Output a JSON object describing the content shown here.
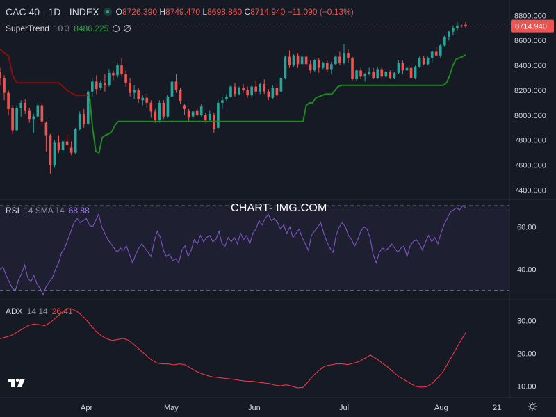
{
  "header": {
    "symbol": "CAC 40 · 1D · INDEX",
    "o_label": "O",
    "o_value": "8726.390",
    "h_label": "H",
    "h_value": "8749.470",
    "l_label": "L",
    "l_value": "8698.860",
    "c_label": "C",
    "c_value": "8714.940",
    "change": "−11.090 (−0.13%)"
  },
  "indicators": {
    "supertrend": {
      "name": "SuperTrend",
      "params": "10 3",
      "value": "8486.225"
    },
    "rsi": {
      "name": "RSI",
      "params": "14 SMA 14",
      "value": "68.88"
    },
    "adx": {
      "name": "ADX",
      "params": "14 14",
      "value": "26.41"
    }
  },
  "watermark": "CHART- IMG.COM",
  "price_badge": "8714.940",
  "colors": {
    "background": "#161a25",
    "up": "#26a69a",
    "down": "#ef5350",
    "supertrend_up": "#1e8a1e",
    "supertrend_down": "#8b0d0d",
    "rsi_line": "#7e57c2",
    "adx_line": "#f23645"
  },
  "chart_data": [
    {
      "type": "candlestick",
      "title": "CAC 40 · 1D · INDEX",
      "y_ticks": [
        "8800.000",
        "8600.000",
        "8400.000",
        "8200.000",
        "8000.000",
        "7800.000",
        "7600.000",
        "7400.000"
      ],
      "ylim": [
        7330,
        8880
      ],
      "x_ticks": [
        "Apr",
        "May",
        "Jun",
        "Jul",
        "Aug",
        "21"
      ],
      "ohlc": [
        [
          8350,
          8380,
          8240,
          8300
        ],
        [
          8300,
          8320,
          8120,
          8180
        ],
        [
          8180,
          8200,
          8000,
          8050
        ],
        [
          8060,
          8080,
          7850,
          7880
        ],
        [
          7880,
          8080,
          7870,
          8060
        ],
        [
          8060,
          8120,
          7990,
          8100
        ],
        [
          8100,
          8130,
          8010,
          8040
        ],
        [
          8040,
          8060,
          7940,
          7970
        ],
        [
          7970,
          8010,
          7860,
          7990
        ],
        [
          7990,
          8100,
          7980,
          8080
        ],
        [
          8080,
          8100,
          7920,
          7950
        ],
        [
          7940,
          7950,
          7710,
          7840
        ],
        [
          7840,
          7850,
          7530,
          7600
        ],
        [
          7600,
          7800,
          7580,
          7780
        ],
        [
          7780,
          7840,
          7700,
          7720
        ],
        [
          7720,
          7800,
          7690,
          7790
        ],
        [
          7790,
          7850,
          7740,
          7760
        ],
        [
          7740,
          7790,
          7680,
          7700
        ],
        [
          7700,
          7900,
          7690,
          7890
        ],
        [
          7890,
          8030,
          7880,
          8010
        ],
        [
          8010,
          8050,
          7900,
          7930
        ],
        [
          7930,
          8200,
          7920,
          8190
        ],
        [
          8190,
          8300,
          8150,
          8270
        ],
        [
          8270,
          8320,
          8170,
          8210
        ],
        [
          8220,
          8280,
          8200,
          8260
        ],
        [
          8260,
          8330,
          8190,
          8240
        ],
        [
          8240,
          8370,
          8230,
          8340
        ],
        [
          8340,
          8360,
          8280,
          8320
        ],
        [
          8320,
          8420,
          8300,
          8400
        ],
        [
          8400,
          8460,
          8310,
          8330
        ],
        [
          8330,
          8360,
          8230,
          8260
        ],
        [
          8260,
          8300,
          8150,
          8180
        ],
        [
          8180,
          8240,
          8130,
          8200
        ],
        [
          8200,
          8220,
          8100,
          8130
        ],
        [
          8120,
          8160,
          8080,
          8140
        ],
        [
          8140,
          8170,
          8060,
          8100
        ],
        [
          8100,
          8120,
          7980,
          8030
        ],
        [
          8030,
          8050,
          7940,
          7960
        ],
        [
          7960,
          8120,
          7940,
          8100
        ],
        [
          8100,
          8120,
          7970,
          7990
        ],
        [
          7990,
          8160,
          7980,
          8150
        ],
        [
          8150,
          8280,
          8140,
          8270
        ],
        [
          8270,
          8330,
          8180,
          8200
        ],
        [
          8200,
          8220,
          8090,
          8110
        ],
        [
          8080,
          8090,
          8000,
          8050
        ],
        [
          8040,
          8050,
          7950,
          7980
        ],
        [
          7990,
          8040,
          7970,
          8030
        ],
        [
          8040,
          8060,
          7980,
          8000
        ],
        [
          8000,
          8090,
          7990,
          8070
        ],
        [
          8000,
          8020,
          7940,
          7960
        ],
        [
          7960,
          8040,
          7950,
          8010
        ],
        [
          8000,
          8020,
          7860,
          7890
        ],
        [
          7900,
          8120,
          7890,
          8100
        ],
        [
          8100,
          8150,
          8050,
          8120
        ],
        [
          8130,
          8170,
          8110,
          8150
        ],
        [
          8150,
          8240,
          8140,
          8230
        ],
        [
          8230,
          8260,
          8150,
          8170
        ],
        [
          8170,
          8230,
          8160,
          8220
        ],
        [
          8220,
          8250,
          8180,
          8200
        ],
        [
          8200,
          8230,
          8140,
          8160
        ],
        [
          8160,
          8240,
          8140,
          8230
        ],
        [
          8230,
          8280,
          8170,
          8190
        ],
        [
          8190,
          8260,
          8170,
          8250
        ],
        [
          8250,
          8290,
          8170,
          8190
        ],
        [
          8190,
          8210,
          8120,
          8150
        ],
        [
          8140,
          8240,
          8130,
          8220
        ],
        [
          8220,
          8240,
          8140,
          8160
        ],
        [
          8190,
          8310,
          8180,
          8300
        ],
        [
          8300,
          8480,
          8290,
          8470
        ],
        [
          8470,
          8520,
          8380,
          8400
        ],
        [
          8400,
          8490,
          8390,
          8480
        ],
        [
          8480,
          8500,
          8380,
          8410
        ],
        [
          8410,
          8480,
          8400,
          8470
        ],
        [
          8470,
          8480,
          8390,
          8410
        ],
        [
          8410,
          8440,
          8340,
          8360
        ],
        [
          8360,
          8450,
          8350,
          8440
        ],
        [
          8440,
          8460,
          8340,
          8380
        ],
        [
          8380,
          8430,
          8370,
          8420
        ],
        [
          8420,
          8440,
          8350,
          8370
        ],
        [
          8370,
          8430,
          8330,
          8410
        ],
        [
          8410,
          8480,
          8400,
          8470
        ],
        [
          8470,
          8510,
          8400,
          8420
        ],
        [
          8420,
          8570,
          8410,
          8500
        ],
        [
          8500,
          8530,
          8420,
          8460
        ],
        [
          8460,
          8470,
          8280,
          8290
        ],
        [
          8290,
          8370,
          8270,
          8360
        ],
        [
          8360,
          8380,
          8290,
          8310
        ],
        [
          8310,
          8340,
          8270,
          8330
        ],
        [
          8330,
          8380,
          8320,
          8350
        ],
        [
          8350,
          8380,
          8290,
          8300
        ],
        [
          8300,
          8390,
          8290,
          8370
        ],
        [
          8370,
          8390,
          8290,
          8310
        ],
        [
          8310,
          8360,
          8300,
          8350
        ],
        [
          8350,
          8360,
          8290,
          8300
        ],
        [
          8300,
          8350,
          8290,
          8340
        ],
        [
          8340,
          8440,
          8330,
          8420
        ],
        [
          8420,
          8440,
          8330,
          8360
        ],
        [
          8360,
          8390,
          8330,
          8380
        ],
        [
          8380,
          8420,
          8290,
          8300
        ],
        [
          8300,
          8400,
          8290,
          8390
        ],
        [
          8390,
          8470,
          8380,
          8460
        ],
        [
          8460,
          8480,
          8400,
          8410
        ],
        [
          8410,
          8470,
          8400,
          8460
        ],
        [
          8460,
          8520,
          8420,
          8510
        ],
        [
          8510,
          8550,
          8470,
          8480
        ],
        [
          8480,
          8570,
          8460,
          8560
        ],
        [
          8560,
          8640,
          8550,
          8630
        ],
        [
          8630,
          8680,
          8600,
          8670
        ],
        [
          8670,
          8720,
          8640,
          8700
        ],
        [
          8700,
          8750,
          8680,
          8720
        ],
        [
          8720,
          8730,
          8700,
          8715
        ],
        [
          8726,
          8749,
          8699,
          8715
        ]
      ],
      "supertrend": [
        {
          "trend": "down",
          "points": [
            8530,
            8500,
            8480,
            8320,
            8260,
            8260,
            8260,
            8260,
            8260,
            8260,
            8260,
            8260,
            8260,
            8260,
            8260,
            8230,
            8200,
            8180,
            8160,
            8160,
            8160,
            8160
          ]
        },
        {
          "trend": "up",
          "points": [
            8160,
            7890,
            7710,
            7700,
            7820,
            7840,
            7850,
            7870,
            7920,
            7950,
            7950,
            7950,
            7950,
            7950,
            7950,
            7950,
            7950,
            7950,
            7950,
            7950,
            7950,
            7950,
            7950,
            7950,
            7950,
            7950,
            7950,
            7950,
            7950,
            7950,
            7950,
            7950,
            7950,
            7950,
            7950,
            7950,
            7950,
            7950,
            7950,
            7950,
            7950,
            7950,
            7950,
            7950,
            7950,
            7950,
            7950,
            7950,
            7950,
            7950,
            7950,
            7950,
            7950,
            7950,
            7950,
            7950,
            7950,
            7950,
            7950,
            7950,
            7950,
            7950,
            7950,
            7950,
            7950,
            7950,
            7950,
            7950,
            8080,
            8100,
            8100,
            8140,
            8150,
            8160,
            8170,
            8170,
            8170,
            8200,
            8230,
            8240,
            8240,
            8240,
            8240,
            8240,
            8240,
            8240,
            8240,
            8240,
            8240,
            8240,
            8240,
            8240,
            8240,
            8240,
            8240,
            8240,
            8240,
            8240,
            8240,
            8240,
            8240,
            8240,
            8240,
            8240,
            8240,
            8240,
            8240,
            8240,
            8240,
            8240,
            8240,
            8240,
            8260,
            8320,
            8400,
            8450,
            8460,
            8470,
            8486
          ]
        }
      ]
    },
    {
      "type": "line",
      "title": "RSI 14 SMA 14",
      "y_ticks": [
        "60.00",
        "40.00"
      ],
      "ylim": [
        26,
        73
      ],
      "bands": [
        30,
        70
      ],
      "values": [
        40,
        41,
        37,
        34,
        31,
        30,
        35,
        38,
        42,
        36,
        34,
        37,
        33,
        31,
        28,
        32,
        34,
        36,
        40,
        43,
        48,
        50,
        54,
        58,
        62,
        64,
        62,
        63,
        64,
        61,
        60,
        63,
        66,
        60,
        57,
        54,
        52,
        50,
        48,
        50,
        49,
        51,
        47,
        43,
        47,
        50,
        52,
        50,
        48,
        46,
        53,
        58,
        55,
        49,
        46,
        47,
        44,
        45,
        43,
        49,
        51,
        46,
        49,
        54,
        52,
        56,
        53,
        55,
        56,
        53,
        54,
        58,
        52,
        51,
        55,
        53,
        55,
        52,
        57,
        54,
        56,
        52,
        57,
        59,
        63,
        61,
        64,
        66,
        63,
        64,
        62,
        59,
        61,
        57,
        60,
        55,
        57,
        59,
        55,
        52,
        49,
        56,
        58,
        60,
        62,
        57,
        53,
        50,
        48,
        56,
        60,
        62,
        60,
        56,
        54,
        51,
        54,
        58,
        60,
        59,
        55,
        47,
        43,
        48,
        50,
        49,
        50,
        52,
        50,
        48,
        50,
        51,
        46,
        51,
        53,
        54,
        52,
        49,
        53,
        56,
        53,
        55,
        52,
        57,
        61,
        64,
        67,
        68,
        69,
        68,
        70,
        69
      ]
    },
    {
      "type": "line",
      "title": "ADX 14 14",
      "y_ticks": [
        "30.00",
        "20.00",
        "10.00"
      ],
      "ylim": [
        6.5,
        36.5
      ],
      "values": [
        24.5,
        25,
        25.5,
        26.5,
        27.5,
        28.5,
        29,
        28.8,
        28.5,
        29.5,
        31,
        32.5,
        33.8,
        33.5,
        32.5,
        31,
        29,
        27,
        25.5,
        24.5,
        24,
        24.3,
        24.6,
        24,
        22.5,
        21,
        19.5,
        18,
        17,
        16.8,
        16.8,
        16.5,
        16.8,
        16.5,
        15.5,
        14.5,
        13.8,
        13.2,
        12.8,
        12.6,
        12.4,
        12.2,
        12,
        11.7,
        11.5,
        11.5,
        11.2,
        11,
        10.8,
        10.3,
        10.1,
        10.4,
        10,
        9.5,
        9.6,
        11.5,
        13.5,
        15,
        16.2,
        16.5,
        16.8,
        16.8,
        16.6,
        17,
        17.5,
        18.5,
        19.5,
        18.5,
        17.2,
        16,
        14.5,
        13,
        12,
        11,
        10,
        9.7,
        9.8,
        10.8,
        12.5,
        14.5,
        17.5,
        20.5,
        23.5,
        26.4
      ]
    }
  ]
}
